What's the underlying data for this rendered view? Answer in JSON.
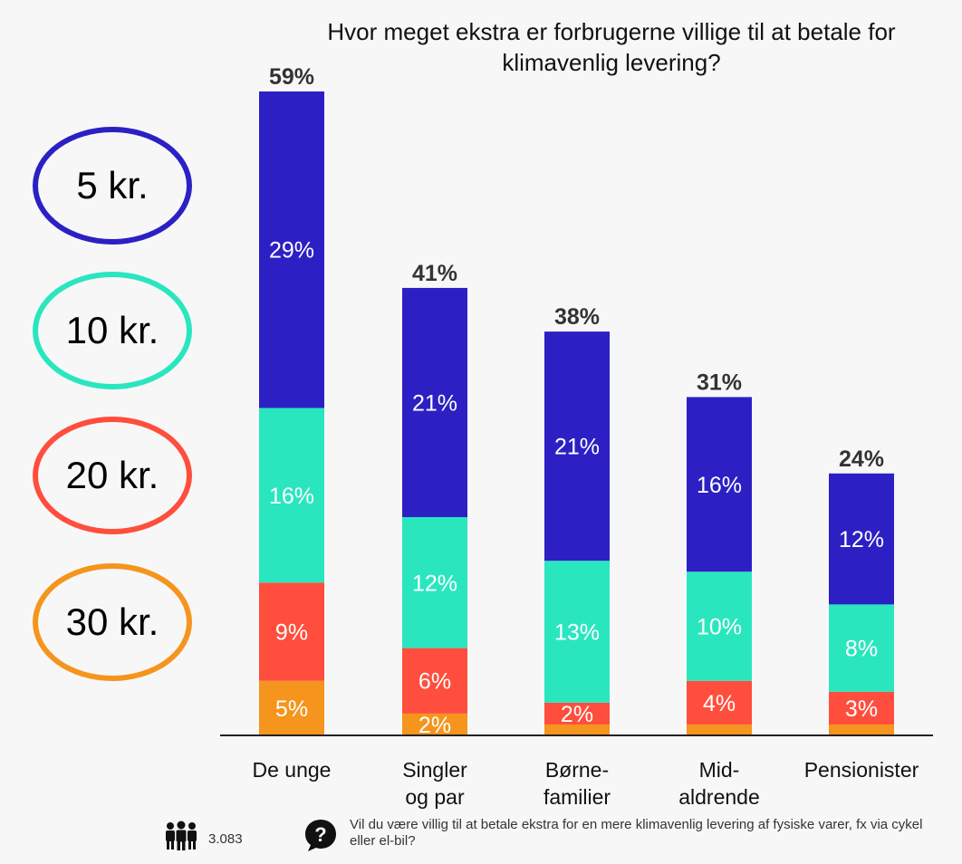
{
  "title": "Hvor meget ekstra er forbrugerne villige til at betale for klimavenlig levering?",
  "legend": [
    {
      "label": "5 kr.",
      "color": "#2c20c4"
    },
    {
      "label": "10 kr.",
      "color": "#2ae6bf"
    },
    {
      "label": "20 kr.",
      "color": "#ff4e3d"
    },
    {
      "label": "30 kr.",
      "color": "#f5951d"
    }
  ],
  "chart_data": {
    "type": "bar",
    "stacked": true,
    "categories": [
      [
        "De unge"
      ],
      [
        "Singler",
        "og par"
      ],
      [
        "Børne-",
        "familier"
      ],
      [
        "Mid-",
        "aldrende"
      ],
      [
        "Pensionister"
      ]
    ],
    "totals": [
      "59%",
      "41%",
      "38%",
      "31%",
      "24%"
    ],
    "series": [
      {
        "name": "30 kr.",
        "color": "#f5951d",
        "values": [
          5,
          2,
          1,
          1,
          1
        ],
        "labels": [
          "5%",
          "2%",
          "",
          "",
          ""
        ]
      },
      {
        "name": "20 kr.",
        "color": "#ff4e3d",
        "values": [
          9,
          6,
          2,
          4,
          3
        ],
        "labels": [
          "9%",
          "6%",
          "2%",
          "4%",
          "3%"
        ]
      },
      {
        "name": "10 kr.",
        "color": "#2ae6bf",
        "values": [
          16,
          12,
          13,
          10,
          8
        ],
        "labels": [
          "16%",
          "12%",
          "13%",
          "10%",
          "8%"
        ]
      },
      {
        "name": "5 kr.",
        "color": "#2c20c4",
        "values": [
          29,
          21,
          21,
          16,
          12
        ],
        "labels": [
          "29%",
          "21%",
          "21%",
          "16%",
          "12%"
        ]
      }
    ],
    "ylim": [
      0,
      59
    ]
  },
  "footer": {
    "respondents": "3.083",
    "question": "Vil du være villig til at betale ekstra for en mere klimavenlig levering af fysiske varer, fx via cykel eller el-bil?"
  }
}
